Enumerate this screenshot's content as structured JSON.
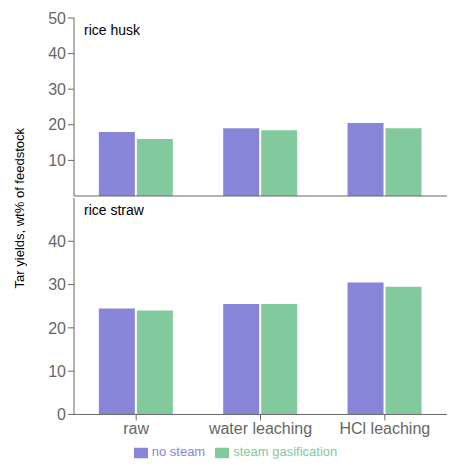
{
  "chart_data": [
    {
      "type": "bar",
      "title": "rice husk",
      "ylabel": "Tar yields, wt% of feedstock",
      "categories": [
        "raw",
        "water leaching",
        "HCl leaching"
      ],
      "series": [
        {
          "name": "no steam",
          "color": "#8884d8",
          "values": [
            18.0,
            19.0,
            20.5
          ]
        },
        {
          "name": "steam gasification",
          "color": "#82ca9d",
          "values": [
            16.0,
            18.5,
            19.0
          ]
        }
      ],
      "ylim": [
        0,
        50
      ],
      "yticks": [
        10,
        20,
        30,
        40,
        50
      ],
      "tick_labels": "y"
    },
    {
      "type": "bar",
      "title": "rice straw",
      "categories": [
        "raw",
        "water leaching",
        "HCl leaching"
      ],
      "series": [
        {
          "name": "no steam",
          "color": "#8884d8",
          "values": [
            24.5,
            25.5,
            30.5
          ]
        },
        {
          "name": "steam gasification",
          "color": "#82ca9d",
          "values": [
            24.0,
            25.5,
            29.5
          ]
        }
      ],
      "ylim": [
        0,
        50
      ],
      "yticks": [
        0,
        10,
        20,
        30,
        40
      ],
      "legend": "bottom"
    }
  ]
}
